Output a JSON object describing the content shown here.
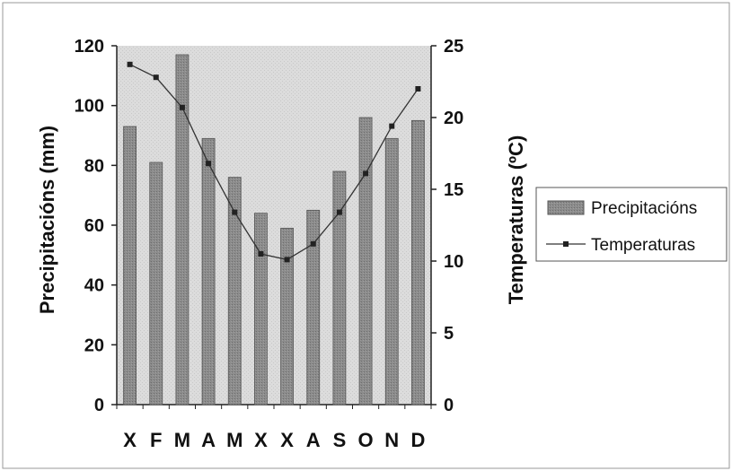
{
  "chart_data": {
    "type": "bar",
    "categories": [
      "X",
      "F",
      "M",
      "A",
      "M",
      "X",
      "X",
      "A",
      "S",
      "O",
      "N",
      "D"
    ],
    "series": [
      {
        "name": "Precipitacións",
        "axis": "left",
        "kind": "bar",
        "values": [
          93,
          81,
          117,
          89,
          76,
          64,
          59,
          65,
          78,
          96,
          89,
          95
        ]
      },
      {
        "name": "Temperaturas",
        "axis": "right",
        "kind": "line",
        "values": [
          23.7,
          22.8,
          20.7,
          16.8,
          13.4,
          10.5,
          10.1,
          11.2,
          13.4,
          16.1,
          19.4,
          22
        ]
      }
    ],
    "ylabel": "Precipitacións (mm)",
    "y2label": "Temperaturas (ºC)",
    "ylim": [
      0,
      120
    ],
    "y2lim": [
      0,
      25
    ],
    "yticks": [
      "0",
      "20",
      "40",
      "60",
      "80",
      "100",
      "120"
    ],
    "y2ticks": [
      "0",
      "5",
      "10",
      "15",
      "20",
      "25"
    ],
    "legend_position": "right",
    "grid": false,
    "colors": {
      "bar": "#8a8a8a",
      "bar_edge": "#555555",
      "plot_background": "#dcdcdc",
      "line": "#333333"
    }
  }
}
